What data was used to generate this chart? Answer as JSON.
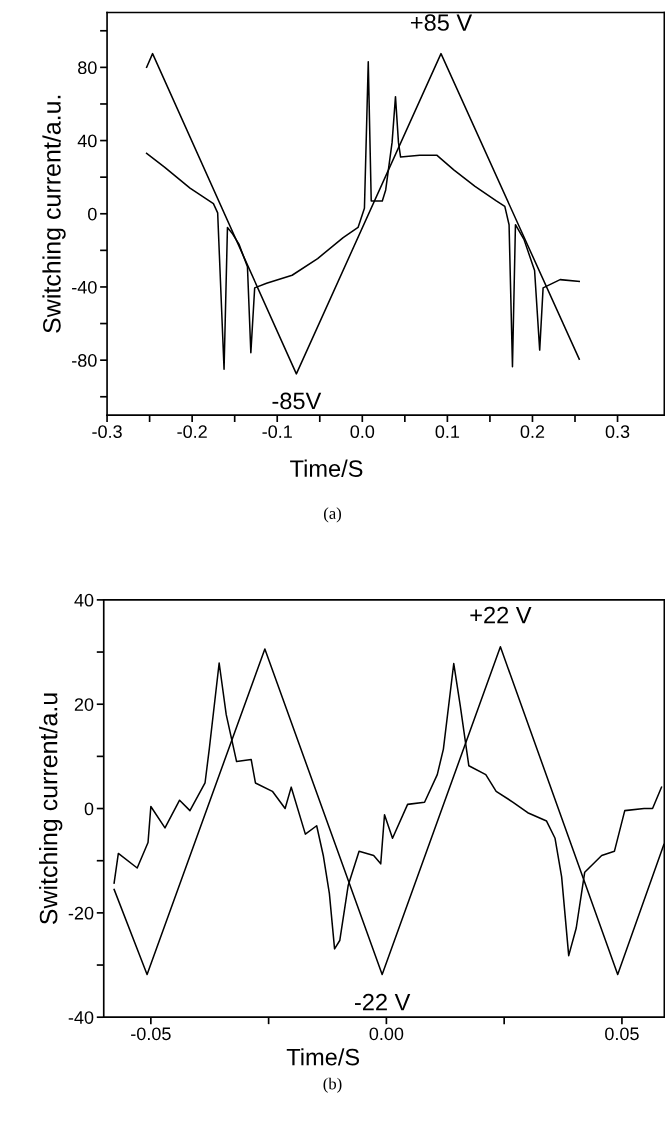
{
  "chart_data": [
    {
      "type": "line",
      "xlabel": "Time/S",
      "ylabel": "Switching current/a.u.",
      "xlim": [
        -0.3,
        0.355
      ],
      "ylim": [
        -110,
        110
      ],
      "xticks": [
        -0.3,
        {
          "value": -0.25,
          "label": null
        },
        -0.2,
        {
          "value": -0.15,
          "label": null
        },
        -0.1,
        {
          "value": -0.05,
          "label": null
        },
        {
          "value": 0,
          "label": "0.0"
        },
        {
          "value": 0.05,
          "label": null
        },
        0.1,
        {
          "value": 0.15,
          "label": null
        },
        0.2,
        {
          "value": 0.25,
          "label": null
        },
        0.3
      ],
      "yticks": [
        {
          "value": -100,
          "label": null
        },
        -80,
        {
          "value": -60,
          "label": null
        },
        -40,
        {
          "value": -20,
          "label": null
        },
        0,
        {
          "value": 20,
          "label": null
        },
        40,
        {
          "value": 60,
          "label": null
        },
        80,
        {
          "value": 100,
          "label": null
        }
      ],
      "grid": false,
      "legend": false,
      "series": [
        {
          "color": "#000000",
          "x": [
            -0.2535,
            -0.2465,
            -0.0775,
            0.0925,
            0.255
          ],
          "values": [
            80,
            87.5,
            -87.5,
            87.5,
            -79.5
          ]
        },
        {
          "color": "#000000",
          "x": [
            -0.2535,
            -0.2325,
            -0.2025,
            -0.175,
            -0.17,
            -0.1625,
            -0.1585,
            -0.1525,
            -0.145,
            -0.135,
            -0.131,
            -0.1265,
            -0.1125,
            -0.0825,
            -0.0525,
            -0.0225,
            -0.005,
            0.0025,
            0.007,
            0.0105,
            0.0235,
            0.0275,
            0.035,
            0.039,
            0.0425,
            0.045,
            0.0675,
            0.0875,
            0.1075,
            0.1325,
            0.1575,
            0.1675,
            0.1725,
            0.1765,
            0.18,
            0.19,
            0.2025,
            0.2085,
            0.2125,
            0.2325,
            0.255
          ],
          "values": [
            33,
            25.5,
            14,
            5.5,
            0.5,
            -85,
            -7.5,
            -11,
            -16.6,
            -29,
            -76,
            -40.5,
            -38,
            -33.6,
            -24.5,
            -13,
            -7.5,
            3,
            83,
            7,
            7,
            13,
            39,
            64,
            39,
            31,
            32,
            32,
            24,
            15,
            7,
            4,
            -6,
            -83.6,
            -6,
            -14,
            -31,
            -74.5,
            -40.5,
            -36,
            -37
          ]
        }
      ],
      "annotations": [
        {
          "text": "+85 V",
          "x": 0.0925,
          "y": 87.5
        },
        {
          "text": "-85V",
          "x": -0.0775,
          "y": -87.5
        },
        "(a)"
      ]
    },
    {
      "type": "line",
      "xlabel": "Time/S",
      "ylabel": "Switching current/a.u",
      "xlim": [
        -0.06,
        0.059
      ],
      "ylim": [
        -40,
        40
      ],
      "xticks": [
        -0.05,
        {
          "value": -0.025,
          "label": null
        },
        {
          "value": 0,
          "label": "0.00"
        },
        {
          "value": 0.025,
          "label": null
        },
        0.05
      ],
      "yticks": [
        -40,
        {
          "value": -30,
          "label": null
        },
        -20,
        {
          "value": -10,
          "label": null
        },
        0,
        {
          "value": 10,
          "label": null
        },
        20,
        {
          "value": 30,
          "label": null
        },
        40
      ],
      "grid": false,
      "legend": false,
      "series": [
        {
          "color": "#000000",
          "x": [
            -0.0578,
            -0.0508,
            -0.0258,
            -0.0009,
            0.0242,
            0.0491,
            0.0589
          ],
          "values": [
            -15.5,
            -31.8,
            30.6,
            -31.8,
            31,
            -31.8,
            -6.9
          ]
        },
        {
          "color": "#000000",
          "x": [
            -0.0578,
            -0.0569,
            -0.0529,
            -0.0506,
            -0.05,
            -0.047,
            -0.0439,
            -0.0417,
            -0.0385,
            -0.0376,
            -0.0355,
            -0.034,
            -0.0318,
            -0.0287,
            -0.0278,
            -0.0242,
            -0.0215,
            -0.0202,
            -0.0172,
            -0.0148,
            -0.0134,
            -0.0121,
            -0.011,
            -0.0099,
            -0.0081,
            -0.0058,
            -0.0027,
            -0.0012,
            -0.0004,
            0.0013,
            0.0045,
            0.0081,
            0.0108,
            0.0121,
            0.0143,
            0.0157,
            0.0175,
            0.0211,
            0.0233,
            0.0269,
            0.03,
            0.034,
            0.0358,
            0.0372,
            0.0387,
            0.0403,
            0.0421,
            0.0457,
            0.0484,
            0.0506,
            0.0547,
            0.0565,
            0.0584
          ],
          "values": [
            -14.3,
            -8.6,
            -11.4,
            -6.5,
            0.4,
            -3.7,
            1.6,
            -0.4,
            4.9,
            11.4,
            27.9,
            18,
            9,
            9.4,
            4.9,
            3.3,
            0,
            4.1,
            -4.9,
            -3.3,
            -9,
            -16.3,
            -26.9,
            -25.3,
            -14.7,
            -8.2,
            -9,
            -10.6,
            -1.2,
            -5.7,
            0.8,
            1.2,
            6.5,
            11.4,
            27.8,
            19.6,
            8.2,
            6.5,
            3.3,
            1.2,
            -0.8,
            -2.4,
            -5.7,
            -13.1,
            -28.2,
            -22.9,
            -12.2,
            -9,
            -8.2,
            -0.4,
            0,
            0,
            4.1
          ]
        }
      ],
      "annotations": [
        {
          "text": "+22 V",
          "x": 0.0242,
          "y": 31
        },
        {
          "text": "-22 V",
          "x": -0.0009,
          "y": -31.8
        },
        "(b)"
      ]
    }
  ]
}
